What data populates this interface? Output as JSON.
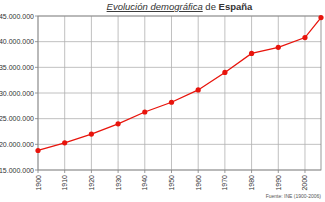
{
  "chart_data": {
    "type": "line",
    "title": "Evolución demográfica de España",
    "annotations": [
      "Fuente: INE (1900-2006)"
    ],
    "x": [
      1900,
      1910,
      1920,
      1930,
      1940,
      1950,
      1960,
      1970,
      1980,
      1990,
      2000,
      2006
    ],
    "values": [
      18800000,
      20300000,
      22000000,
      24000000,
      26300000,
      28200000,
      30600000,
      34000000,
      37700000,
      38900000,
      40800000,
      44700000
    ],
    "color": "#e8140c",
    "marker": "circle",
    "line_style": "solid",
    "grid": true,
    "xlim": [
      1900,
      2006
    ],
    "xticks": [
      1900,
      1910,
      1920,
      1930,
      1940,
      1950,
      1960,
      1970,
      1980,
      1990,
      2000
    ],
    "ylim": [
      15000000,
      45000000
    ],
    "yticks": [
      {
        "value": 15000000,
        "label": "15.000.000"
      },
      {
        "value": 20000000,
        "label": "20.000.000"
      },
      {
        "value": 25000000,
        "label": "25.000.000"
      },
      {
        "value": 30000000,
        "label": "30.000.000"
      },
      {
        "value": 35000000,
        "label": "35.000.000"
      },
      {
        "value": 40000000,
        "label": "40.000.000"
      },
      {
        "value": 45000000,
        "label": "45.000.000"
      }
    ]
  }
}
